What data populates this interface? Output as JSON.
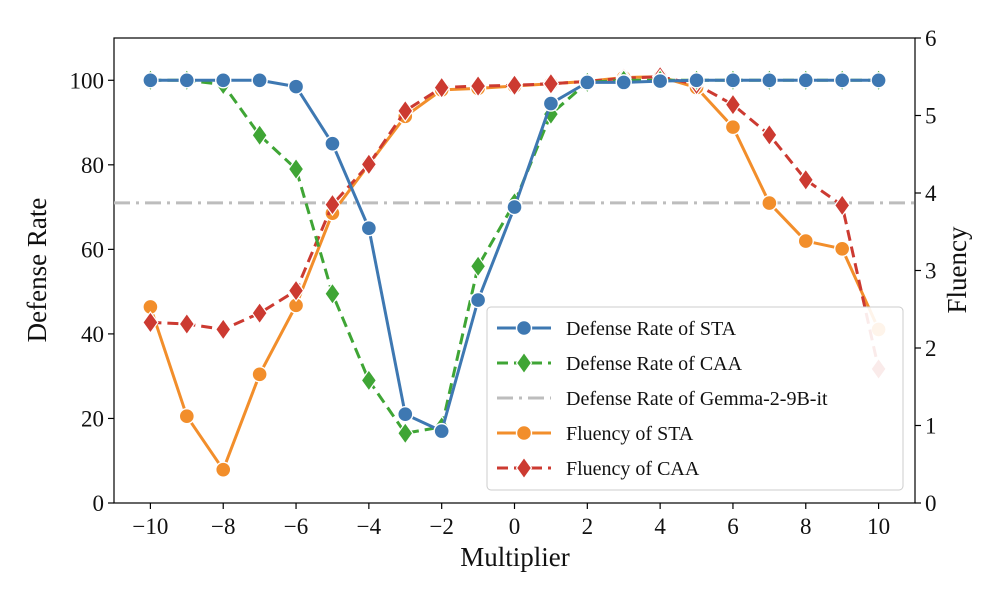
{
  "chart_data": {
    "type": "line",
    "xlabel": "Multiplier",
    "ylabel": "Defense Rate",
    "y2label": "Fluency",
    "x": [
      -10,
      -9,
      -8,
      -7,
      -6,
      -5,
      -4,
      -3,
      -2,
      -1,
      0,
      1,
      2,
      3,
      4,
      5,
      6,
      7,
      8,
      9,
      10
    ],
    "xlim": [
      -11,
      11
    ],
    "ylim": [
      0,
      110
    ],
    "y2lim": [
      0,
      6
    ],
    "xticks": [
      "−10",
      "−8",
      "−6",
      "−4",
      "−2",
      "0",
      "2",
      "4",
      "6",
      "8",
      "10"
    ],
    "xtick_values": [
      -10,
      -8,
      -6,
      -4,
      -2,
      0,
      2,
      4,
      6,
      8,
      10
    ],
    "yticks": [
      "0",
      "20",
      "40",
      "60",
      "80",
      "100"
    ],
    "ytick_values": [
      0,
      20,
      40,
      60,
      80,
      100
    ],
    "y2ticks": [
      "0",
      "1",
      "2",
      "3",
      "4",
      "5",
      "6"
    ],
    "y2tick_values": [
      0,
      1,
      2,
      3,
      4,
      5,
      6
    ],
    "grid": false,
    "legend_position": "lower-right",
    "series": [
      {
        "name": "Defense Rate of STA",
        "axis": "left",
        "color": "#3E78B2",
        "marker": "circle",
        "linestyle": "solid",
        "values": [
          100,
          100,
          100,
          100,
          98.5,
          85,
          65,
          21,
          17,
          48,
          70,
          94.5,
          99.5,
          99.5,
          99.8,
          100,
          100,
          100,
          100,
          100,
          100
        ]
      },
      {
        "name": "Defense Rate of CAA",
        "axis": "left",
        "color": "#3FA535",
        "marker": "diamond",
        "linestyle": "dashed",
        "values": [
          100,
          100,
          99,
          87,
          79,
          49.5,
          29,
          16.5,
          18,
          56,
          71,
          92,
          99.5,
          100,
          100,
          100,
          100,
          100,
          100,
          100,
          100
        ]
      },
      {
        "name": "Defense Rate of Gemma-2-9B-it",
        "axis": "left",
        "color": "#BDBDBD",
        "marker": "none",
        "linestyle": "dashdot",
        "constant": 71
      },
      {
        "name": "Fluency of STA",
        "axis": "right",
        "color": "#F28E2B",
        "marker": "circle",
        "linestyle": "solid",
        "values": [
          2.53,
          1.12,
          0.43,
          1.66,
          2.55,
          3.74,
          4.37,
          4.99,
          5.33,
          5.35,
          5.38,
          5.41,
          5.44,
          5.49,
          5.5,
          5.36,
          4.85,
          3.87,
          3.38,
          3.28,
          2.24
        ]
      },
      {
        "name": "Fluency of CAA",
        "axis": "right",
        "color": "#CC3A31",
        "marker": "diamond",
        "linestyle": "dashed",
        "values": [
          2.33,
          2.31,
          2.24,
          2.45,
          2.74,
          3.85,
          4.37,
          5.06,
          5.36,
          5.38,
          5.39,
          5.41,
          5.44,
          5.48,
          5.5,
          5.4,
          5.14,
          4.75,
          4.17,
          3.84,
          1.73
        ]
      }
    ]
  }
}
